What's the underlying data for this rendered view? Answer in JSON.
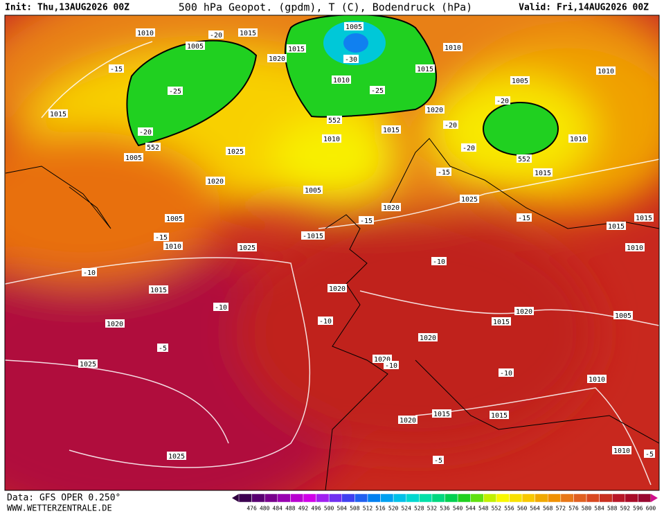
{
  "header": {
    "init": "Init: Thu,13AUG2026 00Z",
    "title": "500 hPa Geopot. (gpdm), T (C), Bodendruck (hPa)",
    "valid": "Valid: Fri,14AUG2026 00Z"
  },
  "map_labels": [
    "1010",
    "1015",
    "1005",
    "1020",
    "1015",
    "1005",
    "-30",
    "1010",
    "1015",
    "1010",
    "1010",
    "-25",
    "-25",
    "-15",
    "1015",
    "1005",
    "-20",
    "1020",
    "552",
    "-20",
    "1015",
    "-20",
    "552",
    "1005",
    "1010",
    "-20",
    "1010",
    "552",
    "1025",
    "1020",
    "-15",
    "1015",
    "1005",
    "1025",
    "1020",
    "-15",
    "-15",
    "1015",
    "1015",
    "1005",
    "-15",
    "1010",
    "-1015",
    "1025",
    "1010",
    "-10",
    "-10",
    "1015",
    "1020",
    "-10",
    "1020",
    "1015",
    "1005",
    "-10",
    "1020",
    "1020",
    "-5",
    "1020",
    "-10",
    "1025",
    "-10",
    "1010",
    "1015",
    "1020",
    "1015",
    "1010",
    "-5",
    "-5",
    "1025",
    "-20"
  ],
  "footer": {
    "data": "Data: GFS OPER 0.250°",
    "site": "WWW.WETTERZENTRALE.DE"
  },
  "scale": {
    "labels": [
      476,
      480,
      484,
      488,
      492,
      496,
      500,
      504,
      508,
      512,
      516,
      520,
      524,
      528,
      532,
      536,
      540,
      544,
      548,
      552,
      556,
      560,
      564,
      568,
      572,
      576,
      580,
      584,
      588,
      592,
      596,
      600
    ],
    "colors": [
      "#3c0050",
      "#580070",
      "#78008c",
      "#9800b0",
      "#b800d0",
      "#d000e8",
      "#a020f0",
      "#7030f0",
      "#4040f0",
      "#2060f0",
      "#0080f0",
      "#00a0f0",
      "#00c0e8",
      "#00d8d0",
      "#00e0a8",
      "#00d880",
      "#00d050",
      "#20d020",
      "#60e010",
      "#c0f000",
      "#f8f800",
      "#f8e000",
      "#f8c800",
      "#f0a800",
      "#f09000",
      "#e87818",
      "#e06020",
      "#d84820",
      "#c83020",
      "#b81828",
      "#a80c28",
      "#980830"
    ]
  }
}
